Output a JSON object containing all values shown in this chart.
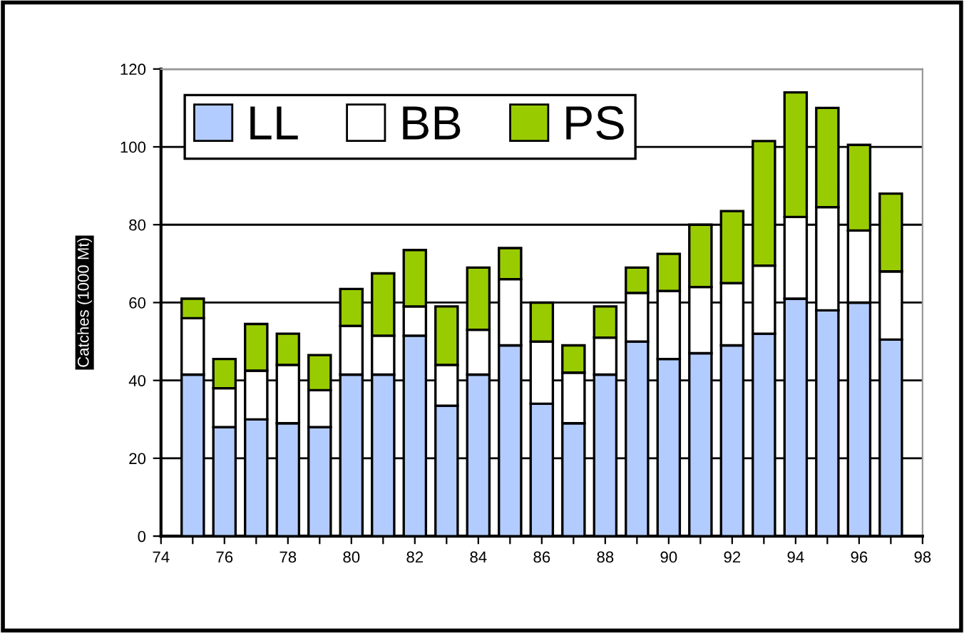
{
  "chart_data": {
    "type": "bar",
    "stacked": true,
    "ylabel": "Catches (1000 Mt)",
    "x": [
      75,
      76,
      77,
      78,
      79,
      80,
      81,
      82,
      83,
      84,
      85,
      86,
      87,
      88,
      89,
      90,
      91,
      92,
      93,
      94,
      95,
      96,
      97
    ],
    "series": [
      {
        "name": "LL",
        "color": "#b3ccff",
        "values": [
          41.5,
          28,
          30,
          29,
          28,
          41.5,
          41.5,
          51.5,
          33.5,
          41.5,
          49,
          34,
          29,
          41.5,
          50,
          45.5,
          47,
          49,
          52,
          61,
          58,
          60,
          50.5
        ]
      },
      {
        "name": "BB",
        "color": "#ffffff",
        "values": [
          14.5,
          10,
          12.5,
          15,
          9.5,
          12.5,
          10,
          7.5,
          10.5,
          11.5,
          17,
          16,
          13,
          9.5,
          12.5,
          17.5,
          17,
          16,
          17.5,
          21,
          26.5,
          18.5,
          17.5
        ]
      },
      {
        "name": "PS",
        "color": "#99cc00",
        "values": [
          5,
          7.5,
          12,
          8,
          9,
          9.5,
          16,
          14.5,
          15,
          16,
          8,
          10,
          7,
          8,
          6.5,
          9.5,
          16,
          18.5,
          32,
          32,
          25.5,
          22,
          20
        ]
      }
    ],
    "xlim": [
      74,
      98
    ],
    "xticks": [
      74,
      {
        "value": 75,
        "label": null
      },
      76,
      {
        "value": 77,
        "label": null
      },
      78,
      {
        "value": 79,
        "label": null
      },
      80,
      {
        "value": 81,
        "label": null
      },
      82,
      {
        "value": 83,
        "label": null
      },
      84,
      {
        "value": 85,
        "label": null
      },
      86,
      {
        "value": 87,
        "label": null
      },
      88,
      {
        "value": 89,
        "label": null
      },
      90,
      {
        "value": 91,
        "label": null
      },
      92,
      {
        "value": 93,
        "label": null
      },
      94,
      {
        "value": 95,
        "label": null
      },
      96,
      {
        "value": 97,
        "label": null
      },
      98
    ],
    "ylim": [
      0,
      120
    ],
    "yticks": [
      0,
      20,
      40,
      60,
      80,
      100,
      120
    ],
    "grid": "y",
    "legend": "top left"
  }
}
